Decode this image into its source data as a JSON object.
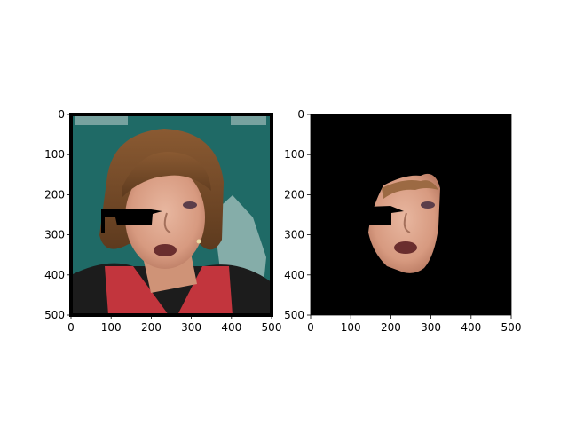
{
  "figure": {
    "panels": [
      {
        "name": "left",
        "image": {
          "subject": "woman-portrait-with-black-occluded-eye-region",
          "background_color": "#1f6a66",
          "occlusion_color": "#000000"
        },
        "x_ticks": [
          "0",
          "100",
          "200",
          "300",
          "400",
          "500"
        ],
        "y_ticks": [
          "0",
          "100",
          "200",
          "300",
          "400",
          "500"
        ],
        "xlim": [
          0,
          500
        ],
        "ylim": [
          500,
          0
        ]
      },
      {
        "name": "right",
        "image": {
          "subject": "segmented-face-on-black-background",
          "background_color": "#000000"
        },
        "x_ticks": [
          "0",
          "100",
          "200",
          "300",
          "400",
          "500"
        ],
        "y_ticks": [
          "0",
          "100",
          "200",
          "300",
          "400",
          "500"
        ],
        "xlim": [
          0,
          500
        ],
        "ylim": [
          500,
          0
        ]
      }
    ]
  }
}
